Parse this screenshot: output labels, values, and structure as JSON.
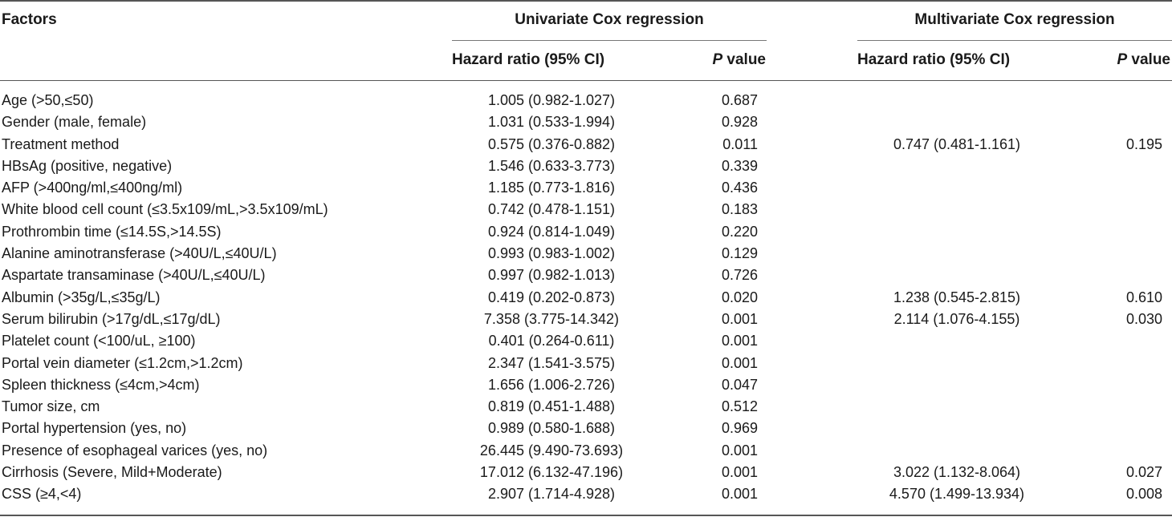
{
  "header": {
    "factors": "Factors",
    "univariate": "Univariate Cox regression",
    "multivariate": "Multivariate Cox regression",
    "hazard_ratio": "Hazard ratio (95% CI)",
    "p_italic": "P",
    "p_suffix": " value"
  },
  "rows": [
    {
      "factor": "Age (>50,≤50)",
      "hr_uni": "1.005 (0.982-1.027)",
      "p_uni": "0.687",
      "hr_multi": "",
      "p_multi": ""
    },
    {
      "factor": "Gender (male, female)",
      "hr_uni": "1.031 (0.533-1.994)",
      "p_uni": "0.928",
      "hr_multi": "",
      "p_multi": ""
    },
    {
      "factor": "Treatment method",
      "hr_uni": "0.575 (0.376-0.882)",
      "p_uni": "0.011",
      "hr_multi": "0.747 (0.481-1.161)",
      "p_multi": "0.195"
    },
    {
      "factor": "HBsAg (positive, negative)",
      "hr_uni": "1.546 (0.633-3.773)",
      "p_uni": "0.339",
      "hr_multi": "",
      "p_multi": ""
    },
    {
      "factor": "AFP (>400ng/ml,≤400ng/ml)",
      "hr_uni": "1.185 (0.773-1.816)",
      "p_uni": "0.436",
      "hr_multi": "",
      "p_multi": ""
    },
    {
      "factor": "White blood cell count (≤3.5x109/mL,>3.5x109/mL)",
      "hr_uni": "0.742 (0.478-1.151)",
      "p_uni": "0.183",
      "hr_multi": "",
      "p_multi": ""
    },
    {
      "factor": "Prothrombin time (≤14.5S,>14.5S)",
      "hr_uni": "0.924 (0.814-1.049)",
      "p_uni": "0.220",
      "hr_multi": "",
      "p_multi": ""
    },
    {
      "factor": "Alanine aminotransferase (>40U/L,≤40U/L)",
      "hr_uni": "0.993 (0.983-1.002)",
      "p_uni": "0.129",
      "hr_multi": "",
      "p_multi": ""
    },
    {
      "factor": "Aspartate transaminase (>40U/L,≤40U/L)",
      "hr_uni": "0.997 (0.982-1.013)",
      "p_uni": "0.726",
      "hr_multi": "",
      "p_multi": ""
    },
    {
      "factor": "Albumin (>35g/L,≤35g/L)",
      "hr_uni": "0.419 (0.202-0.873)",
      "p_uni": "0.020",
      "hr_multi": "1.238 (0.545-2.815)",
      "p_multi": "0.610"
    },
    {
      "factor": "Serum bilirubin (>17g/dL,≤17g/dL)",
      "hr_uni": "7.358 (3.775-14.342)",
      "p_uni": "0.001",
      "hr_multi": "2.114 (1.076-4.155)",
      "p_multi": "0.030"
    },
    {
      "factor": "Platelet count (<100/uL, ≥100)",
      "hr_uni": "0.401 (0.264-0.611)",
      "p_uni": "0.001",
      "hr_multi": "",
      "p_multi": ""
    },
    {
      "factor": "Portal vein diameter (≤1.2cm,>1.2cm)",
      "hr_uni": "2.347 (1.541-3.575)",
      "p_uni": "0.001",
      "hr_multi": "",
      "p_multi": ""
    },
    {
      "factor": "Spleen thickness (≤4cm,>4cm)",
      "hr_uni": "1.656 (1.006-2.726)",
      "p_uni": "0.047",
      "hr_multi": "",
      "p_multi": ""
    },
    {
      "factor": "Tumor size, cm",
      "hr_uni": "0.819 (0.451-1.488)",
      "p_uni": "0.512",
      "hr_multi": "",
      "p_multi": ""
    },
    {
      "factor": "Portal hypertension (yes, no)",
      "hr_uni": "0.989 (0.580-1.688)",
      "p_uni": "0.969",
      "hr_multi": "",
      "p_multi": ""
    },
    {
      "factor": "Presence of esophageal varices (yes, no)",
      "hr_uni": "26.445 (9.490-73.693)",
      "p_uni": "0.001",
      "hr_multi": "",
      "p_multi": ""
    },
    {
      "factor": "Cirrhosis (Severe, Mild+Moderate)",
      "hr_uni": "17.012 (6.132-47.196)",
      "p_uni": "0.001",
      "hr_multi": "3.022 (1.132-8.064)",
      "p_multi": "0.027"
    },
    {
      "factor": "CSS (≥4,<4)",
      "hr_uni": "2.907 (1.714-4.928)",
      "p_uni": "0.001",
      "hr_multi": "4.570 (1.499-13.934)",
      "p_multi": "0.008"
    }
  ]
}
